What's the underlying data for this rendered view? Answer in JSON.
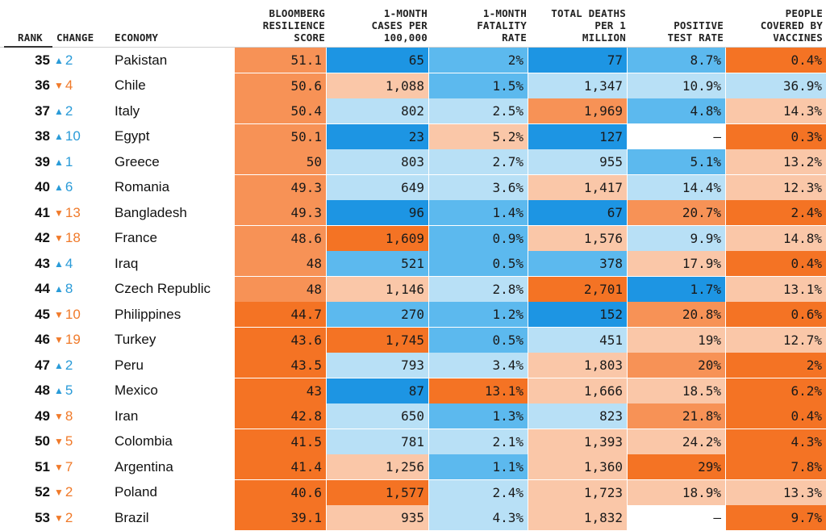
{
  "chart_data": {
    "type": "table",
    "columns": [
      {
        "key": "rank",
        "label": "RANK"
      },
      {
        "key": "change",
        "label": "CHANGE"
      },
      {
        "key": "economy",
        "label": "ECONOMY"
      },
      {
        "key": "score",
        "label": "BLOOMBERG\nRESILIENCE\nSCORE"
      },
      {
        "key": "cases",
        "label": "1-MONTH\nCASES PER\n100,000"
      },
      {
        "key": "fatality",
        "label": "1-MONTH\nFATALITY\nRATE"
      },
      {
        "key": "deaths",
        "label": "TOTAL DEATHS\nPER 1\nMILLION"
      },
      {
        "key": "positive",
        "label": "POSITIVE\nTEST RATE"
      },
      {
        "key": "vaccines",
        "label": "PEOPLE\nCOVERED BY\nVACCINES"
      }
    ],
    "colors": {
      "dark_orange": "#f47324",
      "orange": "#f79256",
      "light_orange": "#fac7a8",
      "light_blue": "#b8e0f6",
      "blue": "#5cb9ee",
      "dark_blue": "#1d95e3",
      "white": "#ffffff",
      "up_arrow": "#2a9bd8",
      "down_arrow": "#f07a2a"
    },
    "rows": [
      {
        "rank": "35",
        "dir": "up",
        "change": "2",
        "economy": "Pakistan",
        "score": {
          "text": "51.1",
          "c": "orange"
        },
        "cases": {
          "text": "65",
          "c": "dark_blue"
        },
        "fatality": {
          "text": "2%",
          "c": "blue"
        },
        "deaths": {
          "text": "77",
          "c": "dark_blue"
        },
        "positive": {
          "text": "8.7%",
          "c": "blue"
        },
        "vaccines": {
          "text": "0.4%",
          "c": "dark_orange"
        }
      },
      {
        "rank": "36",
        "dir": "down",
        "change": "4",
        "economy": "Chile",
        "score": {
          "text": "50.6",
          "c": "orange"
        },
        "cases": {
          "text": "1,088",
          "c": "light_orange"
        },
        "fatality": {
          "text": "1.5%",
          "c": "blue"
        },
        "deaths": {
          "text": "1,347",
          "c": "light_blue"
        },
        "positive": {
          "text": "10.9%",
          "c": "light_blue"
        },
        "vaccines": {
          "text": "36.9%",
          "c": "light_blue"
        }
      },
      {
        "rank": "37",
        "dir": "up",
        "change": "2",
        "economy": "Italy",
        "score": {
          "text": "50.4",
          "c": "orange"
        },
        "cases": {
          "text": "802",
          "c": "light_blue"
        },
        "fatality": {
          "text": "2.5%",
          "c": "light_blue"
        },
        "deaths": {
          "text": "1,969",
          "c": "orange"
        },
        "positive": {
          "text": "4.8%",
          "c": "blue"
        },
        "vaccines": {
          "text": "14.3%",
          "c": "light_orange"
        }
      },
      {
        "rank": "38",
        "dir": "up",
        "change": "10",
        "economy": "Egypt",
        "score": {
          "text": "50.1",
          "c": "orange"
        },
        "cases": {
          "text": "23",
          "c": "dark_blue"
        },
        "fatality": {
          "text": "5.2%",
          "c": "light_orange"
        },
        "deaths": {
          "text": "127",
          "c": "dark_blue"
        },
        "positive": {
          "text": "–",
          "c": "white"
        },
        "vaccines": {
          "text": "0.3%",
          "c": "dark_orange"
        }
      },
      {
        "rank": "39",
        "dir": "up",
        "change": "1",
        "economy": "Greece",
        "score": {
          "text": "50",
          "c": "orange"
        },
        "cases": {
          "text": "803",
          "c": "light_blue"
        },
        "fatality": {
          "text": "2.7%",
          "c": "light_blue"
        },
        "deaths": {
          "text": "955",
          "c": "light_blue"
        },
        "positive": {
          "text": "5.1%",
          "c": "blue"
        },
        "vaccines": {
          "text": "13.2%",
          "c": "light_orange"
        }
      },
      {
        "rank": "40",
        "dir": "up",
        "change": "6",
        "economy": "Romania",
        "score": {
          "text": "49.3",
          "c": "orange"
        },
        "cases": {
          "text": "649",
          "c": "light_blue"
        },
        "fatality": {
          "text": "3.6%",
          "c": "light_blue"
        },
        "deaths": {
          "text": "1,417",
          "c": "light_orange"
        },
        "positive": {
          "text": "14.4%",
          "c": "light_blue"
        },
        "vaccines": {
          "text": "12.3%",
          "c": "light_orange"
        }
      },
      {
        "rank": "41",
        "dir": "down",
        "change": "13",
        "economy": "Bangladesh",
        "score": {
          "text": "49.3",
          "c": "orange"
        },
        "cases": {
          "text": "96",
          "c": "dark_blue"
        },
        "fatality": {
          "text": "1.4%",
          "c": "blue"
        },
        "deaths": {
          "text": "67",
          "c": "dark_blue"
        },
        "positive": {
          "text": "20.7%",
          "c": "orange"
        },
        "vaccines": {
          "text": "2.4%",
          "c": "dark_orange"
        }
      },
      {
        "rank": "42",
        "dir": "down",
        "change": "18",
        "economy": "France",
        "score": {
          "text": "48.6",
          "c": "orange"
        },
        "cases": {
          "text": "1,609",
          "c": "dark_orange"
        },
        "fatality": {
          "text": "0.9%",
          "c": "blue"
        },
        "deaths": {
          "text": "1,576",
          "c": "light_orange"
        },
        "positive": {
          "text": "9.9%",
          "c": "light_blue"
        },
        "vaccines": {
          "text": "14.8%",
          "c": "light_orange"
        }
      },
      {
        "rank": "43",
        "dir": "up",
        "change": "4",
        "economy": "Iraq",
        "score": {
          "text": "48",
          "c": "orange"
        },
        "cases": {
          "text": "521",
          "c": "blue"
        },
        "fatality": {
          "text": "0.5%",
          "c": "blue"
        },
        "deaths": {
          "text": "378",
          "c": "blue"
        },
        "positive": {
          "text": "17.9%",
          "c": "light_orange"
        },
        "vaccines": {
          "text": "0.4%",
          "c": "dark_orange"
        }
      },
      {
        "rank": "44",
        "dir": "up",
        "change": "8",
        "economy": "Czech Republic",
        "score": {
          "text": "48",
          "c": "orange"
        },
        "cases": {
          "text": "1,146",
          "c": "light_orange"
        },
        "fatality": {
          "text": "2.8%",
          "c": "light_blue"
        },
        "deaths": {
          "text": "2,701",
          "c": "dark_orange"
        },
        "positive": {
          "text": "1.7%",
          "c": "dark_blue"
        },
        "vaccines": {
          "text": "13.1%",
          "c": "light_orange"
        }
      },
      {
        "rank": "45",
        "dir": "down",
        "change": "10",
        "economy": "Philippines",
        "score": {
          "text": "44.7",
          "c": "dark_orange"
        },
        "cases": {
          "text": "270",
          "c": "blue"
        },
        "fatality": {
          "text": "1.2%",
          "c": "blue"
        },
        "deaths": {
          "text": "152",
          "c": "dark_blue"
        },
        "positive": {
          "text": "20.8%",
          "c": "orange"
        },
        "vaccines": {
          "text": "0.6%",
          "c": "dark_orange"
        }
      },
      {
        "rank": "46",
        "dir": "down",
        "change": "19",
        "economy": "Turkey",
        "score": {
          "text": "43.6",
          "c": "dark_orange"
        },
        "cases": {
          "text": "1,745",
          "c": "dark_orange"
        },
        "fatality": {
          "text": "0.5%",
          "c": "blue"
        },
        "deaths": {
          "text": "451",
          "c": "light_blue"
        },
        "positive": {
          "text": "19%",
          "c": "light_orange"
        },
        "vaccines": {
          "text": "12.7%",
          "c": "light_orange"
        }
      },
      {
        "rank": "47",
        "dir": "up",
        "change": "2",
        "economy": "Peru",
        "score": {
          "text": "43.5",
          "c": "dark_orange"
        },
        "cases": {
          "text": "793",
          "c": "light_blue"
        },
        "fatality": {
          "text": "3.4%",
          "c": "light_blue"
        },
        "deaths": {
          "text": "1,803",
          "c": "light_orange"
        },
        "positive": {
          "text": "20%",
          "c": "orange"
        },
        "vaccines": {
          "text": "2%",
          "c": "dark_orange"
        }
      },
      {
        "rank": "48",
        "dir": "up",
        "change": "5",
        "economy": "Mexico",
        "score": {
          "text": "43",
          "c": "dark_orange"
        },
        "cases": {
          "text": "87",
          "c": "dark_blue"
        },
        "fatality": {
          "text": "13.1%",
          "c": "dark_orange"
        },
        "deaths": {
          "text": "1,666",
          "c": "light_orange"
        },
        "positive": {
          "text": "18.5%",
          "c": "light_orange"
        },
        "vaccines": {
          "text": "6.2%",
          "c": "dark_orange"
        }
      },
      {
        "rank": "49",
        "dir": "down",
        "change": "8",
        "economy": "Iran",
        "score": {
          "text": "42.8",
          "c": "dark_orange"
        },
        "cases": {
          "text": "650",
          "c": "light_blue"
        },
        "fatality": {
          "text": "1.3%",
          "c": "blue"
        },
        "deaths": {
          "text": "823",
          "c": "light_blue"
        },
        "positive": {
          "text": "21.8%",
          "c": "orange"
        },
        "vaccines": {
          "text": "0.4%",
          "c": "dark_orange"
        }
      },
      {
        "rank": "50",
        "dir": "down",
        "change": "5",
        "economy": "Colombia",
        "score": {
          "text": "41.5",
          "c": "dark_orange"
        },
        "cases": {
          "text": "781",
          "c": "light_blue"
        },
        "fatality": {
          "text": "2.1%",
          "c": "light_blue"
        },
        "deaths": {
          "text": "1,393",
          "c": "light_orange"
        },
        "positive": {
          "text": "24.2%",
          "c": "light_orange"
        },
        "vaccines": {
          "text": "4.3%",
          "c": "dark_orange"
        }
      },
      {
        "rank": "51",
        "dir": "down",
        "change": "7",
        "economy": "Argentina",
        "score": {
          "text": "41.4",
          "c": "dark_orange"
        },
        "cases": {
          "text": "1,256",
          "c": "light_orange"
        },
        "fatality": {
          "text": "1.1%",
          "c": "blue"
        },
        "deaths": {
          "text": "1,360",
          "c": "light_orange"
        },
        "positive": {
          "text": "29%",
          "c": "dark_orange"
        },
        "vaccines": {
          "text": "7.8%",
          "c": "dark_orange"
        }
      },
      {
        "rank": "52",
        "dir": "down",
        "change": "2",
        "economy": "Poland",
        "score": {
          "text": "40.6",
          "c": "dark_orange"
        },
        "cases": {
          "text": "1,577",
          "c": "dark_orange"
        },
        "fatality": {
          "text": "2.4%",
          "c": "light_blue"
        },
        "deaths": {
          "text": "1,723",
          "c": "light_orange"
        },
        "positive": {
          "text": "18.9%",
          "c": "light_orange"
        },
        "vaccines": {
          "text": "13.3%",
          "c": "light_orange"
        }
      },
      {
        "rank": "53",
        "dir": "down",
        "change": "2",
        "economy": "Brazil",
        "score": {
          "text": "39.1",
          "c": "dark_orange"
        },
        "cases": {
          "text": "935",
          "c": "light_orange"
        },
        "fatality": {
          "text": "4.3%",
          "c": "light_blue"
        },
        "deaths": {
          "text": "1,832",
          "c": "light_orange"
        },
        "positive": {
          "text": "–",
          "c": "white"
        },
        "vaccines": {
          "text": "9.7%",
          "c": "dark_orange"
        }
      }
    ]
  }
}
